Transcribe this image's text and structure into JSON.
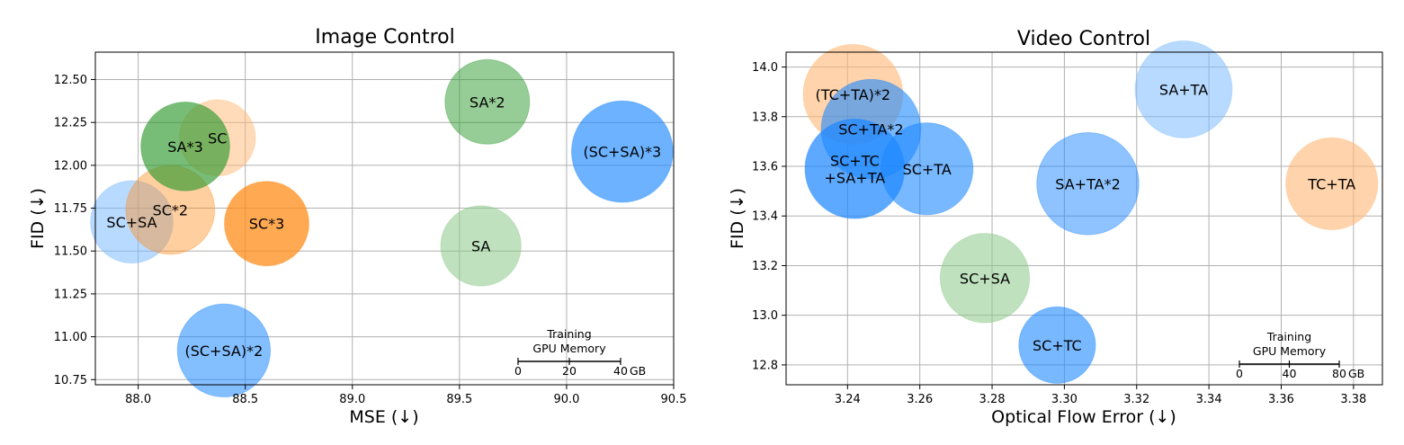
{
  "colors": {
    "blue": "#1E88FF",
    "lightblue": "#7DBBFF",
    "orange": "#FF8C1A",
    "lightorange": "#FFB774",
    "green": "#2E9A2E",
    "lightgreen": "#8CC888"
  },
  "chart_data": [
    {
      "type": "scatter",
      "title": "Image Control",
      "xlabel": "MSE (↓)",
      "ylabel": "FID (↓)",
      "xlim": [
        87.8,
        90.5
      ],
      "ylim": [
        10.72,
        12.66
      ],
      "xticks": [
        88.0,
        88.5,
        89.0,
        89.5,
        90.0,
        90.5
      ],
      "xtick_labels": [
        "88.0",
        "88.5",
        "89.0",
        "89.5",
        "90.0",
        "90.5"
      ],
      "yticks": [
        10.75,
        11.0,
        11.25,
        11.5,
        11.75,
        12.0,
        12.25,
        12.5
      ],
      "ytick_labels": [
        "10.75",
        "11.00",
        "11.25",
        "11.50",
        "11.75",
        "12.00",
        "12.25",
        "12.50"
      ],
      "grid": true,
      "size_legend": {
        "title_lines": [
          "Training",
          "GPU Memory"
        ],
        "ticks": [
          "0",
          "20",
          "40"
        ],
        "unit": "GB",
        "max": 40,
        "position": "bottom-right"
      },
      "points": [
        {
          "label": "SC+SA",
          "x": 87.97,
          "y": 11.67,
          "memory": 19.5,
          "color": "lightblue",
          "opacity": 0.55
        },
        {
          "label": "SC*2",
          "x": 88.15,
          "y": 11.74,
          "memory": 21,
          "color": "orange",
          "opacity": 0.42
        },
        {
          "label": "SC",
          "x": 88.37,
          "y": 12.16,
          "memory": 18,
          "color": "lightorange",
          "opacity": 0.5
        },
        {
          "label": "SA*3",
          "x": 88.22,
          "y": 12.11,
          "memory": 21,
          "color": "green",
          "opacity": 0.65
        },
        {
          "label": "SC*3",
          "x": 88.6,
          "y": 11.66,
          "memory": 20,
          "color": "orange",
          "opacity": 0.75
        },
        {
          "label": "(SC+SA)*2",
          "x": 88.4,
          "y": 10.92,
          "memory": 22,
          "color": "blue",
          "opacity": 0.55
        },
        {
          "label": "SA*2",
          "x": 89.63,
          "y": 12.37,
          "memory": 20,
          "color": "green",
          "opacity": 0.5
        },
        {
          "label": "SA",
          "x": 89.6,
          "y": 11.53,
          "memory": 19,
          "color": "lightgreen",
          "opacity": 0.55
        },
        {
          "label": "(SC+SA)*3",
          "x": 90.26,
          "y": 12.08,
          "memory": 24,
          "color": "blue",
          "opacity": 0.65
        }
      ]
    },
    {
      "type": "scatter",
      "title": "Video Control",
      "xlabel": "Optical Flow Error (↓)",
      "ylabel": "FID (↓)",
      "xlim": [
        3.223,
        3.388
      ],
      "ylim": [
        12.72,
        14.06
      ],
      "xticks": [
        3.24,
        3.26,
        3.28,
        3.3,
        3.32,
        3.34,
        3.36,
        3.38
      ],
      "xtick_labels": [
        "3.24",
        "3.26",
        "3.28",
        "3.30",
        "3.32",
        "3.34",
        "3.36",
        "3.38"
      ],
      "yticks": [
        12.8,
        13.0,
        13.2,
        13.4,
        13.6,
        13.8,
        14.0
      ],
      "ytick_labels": [
        "12.8",
        "13.0",
        "13.2",
        "13.4",
        "13.6",
        "13.8",
        "14.0"
      ],
      "grid": true,
      "size_legend": {
        "title_lines": [
          "Training",
          "GPU Memory"
        ],
        "ticks": [
          "0",
          "40",
          "80"
        ],
        "unit": "GB",
        "max": 80,
        "position": "bottom-right"
      },
      "points": [
        {
          "label": "(TC+TA)*2",
          "x": 3.2415,
          "y": 13.89,
          "memory": 39,
          "color": "lightorange",
          "opacity": 0.6
        },
        {
          "label": "SC+TA*2",
          "x": 3.2465,
          "y": 13.75,
          "memory": 39,
          "color": "blue",
          "opacity": 0.6
        },
        {
          "label": "SC+TC\n+SA+TA",
          "x": 3.242,
          "y": 13.59,
          "memory": 39,
          "color": "blue",
          "opacity": 0.72
        },
        {
          "label": "SC+TA",
          "x": 3.262,
          "y": 13.59,
          "memory": 36,
          "color": "blue",
          "opacity": 0.6
        },
        {
          "label": "SA+TA",
          "x": 3.333,
          "y": 13.91,
          "memory": 38,
          "color": "lightblue",
          "opacity": 0.55
        },
        {
          "label": "SA+TA*2",
          "x": 3.3065,
          "y": 13.53,
          "memory": 40,
          "color": "blue",
          "opacity": 0.5
        },
        {
          "label": "TC+TA",
          "x": 3.374,
          "y": 13.53,
          "memory": 36,
          "color": "lightorange",
          "opacity": 0.6
        },
        {
          "label": "SC+SA",
          "x": 3.278,
          "y": 13.15,
          "memory": 35,
          "color": "lightgreen",
          "opacity": 0.55
        },
        {
          "label": "SC+TC",
          "x": 3.298,
          "y": 12.88,
          "memory": 30,
          "color": "blue",
          "opacity": 0.6
        }
      ]
    }
  ]
}
